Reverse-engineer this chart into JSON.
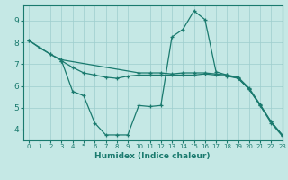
{
  "xlabel": "Humidex (Indice chaleur)",
  "bg_color": "#c5e8e5",
  "line_color": "#1a7a6e",
  "grid_color": "#9ecece",
  "xlim": [
    -0.5,
    23
  ],
  "ylim": [
    3.5,
    9.7
  ],
  "xticks": [
    0,
    1,
    2,
    3,
    4,
    5,
    6,
    7,
    8,
    9,
    10,
    11,
    12,
    13,
    14,
    15,
    16,
    17,
    18,
    19,
    20,
    21,
    22,
    23
  ],
  "yticks": [
    4,
    5,
    6,
    7,
    8,
    9
  ],
  "line1_x": [
    0,
    1,
    2,
    3,
    10,
    11,
    12,
    13,
    14,
    15,
    16,
    17,
    18,
    19,
    20,
    21,
    22,
    23
  ],
  "line1_y": [
    8.1,
    7.75,
    7.45,
    7.2,
    6.6,
    6.6,
    6.6,
    6.55,
    6.6,
    6.6,
    6.6,
    6.55,
    6.5,
    6.4,
    5.9,
    5.15,
    4.35,
    3.75
  ],
  "line2_x": [
    0,
    2,
    3,
    4,
    5,
    6,
    7,
    8,
    9,
    10,
    11,
    12,
    13,
    14,
    15,
    16,
    17,
    18,
    19,
    20,
    21,
    22,
    23
  ],
  "line2_y": [
    8.1,
    7.45,
    7.15,
    6.85,
    6.6,
    6.5,
    6.4,
    6.35,
    6.45,
    6.5,
    6.5,
    6.5,
    6.5,
    6.5,
    6.5,
    6.55,
    6.5,
    6.45,
    6.35,
    5.85,
    5.1,
    4.3,
    3.7
  ],
  "line3_x": [
    3,
    4,
    5,
    6,
    7,
    8,
    9,
    10,
    11,
    12,
    13,
    14,
    15,
    16,
    17,
    18,
    19,
    20,
    21,
    22,
    23
  ],
  "line3_y": [
    7.15,
    5.75,
    5.55,
    4.3,
    3.75,
    3.75,
    3.75,
    5.1,
    5.05,
    5.1,
    8.25,
    8.6,
    9.45,
    9.05,
    6.65,
    6.5,
    6.35,
    5.85,
    5.1,
    4.35,
    3.75
  ]
}
